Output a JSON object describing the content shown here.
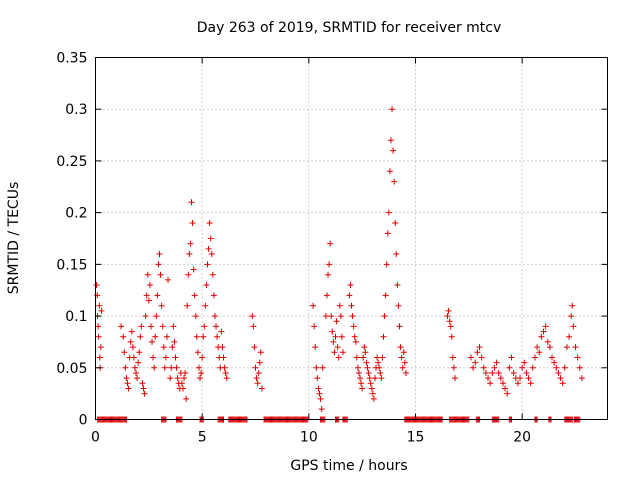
{
  "chart_data": {
    "type": "scatter",
    "title": "Day 263 of 2019, SRMTID for receiver mtcv",
    "xlabel": "GPS time / hours",
    "ylabel": "SRMTID / TECUs",
    "xlim": [
      0,
      24
    ],
    "ylim": [
      0,
      0.35
    ],
    "xticks": [
      0,
      5,
      10,
      15,
      20
    ],
    "yticks": [
      0,
      0.05,
      0.1,
      0.15,
      0.2,
      0.25,
      0.3,
      0.35
    ],
    "xtick_labels": [
      "0",
      "5",
      "10",
      "15",
      "20"
    ],
    "ytick_labels": [
      "0",
      "0.05",
      "0.1",
      "0.15",
      "0.2",
      "0.25",
      "0.3",
      "0.35"
    ],
    "grid": true,
    "marker": "+",
    "color": "#e00000",
    "series": [
      {
        "name": "SRMTID",
        "points": [
          [
            0.05,
            0.13
          ],
          [
            0.08,
            0.12
          ],
          [
            0.1,
            0.1
          ],
          [
            0.12,
            0.09
          ],
          [
            0.15,
            0.08
          ],
          [
            0.18,
            0.11
          ],
          [
            0.2,
            0.06
          ],
          [
            0.22,
            0.05
          ],
          [
            0.25,
            0.07
          ],
          [
            0.28,
            0.105
          ],
          [
            1.2,
            0.09
          ],
          [
            1.3,
            0.08
          ],
          [
            1.35,
            0.065
          ],
          [
            1.4,
            0.05
          ],
          [
            1.45,
            0.04
          ],
          [
            1.5,
            0.035
          ],
          [
            1.55,
            0.03
          ],
          [
            1.6,
            0.06
          ],
          [
            1.65,
            0.075
          ],
          [
            1.7,
            0.085
          ],
          [
            1.75,
            0.07
          ],
          [
            1.8,
            0.06
          ],
          [
            1.85,
            0.05
          ],
          [
            1.9,
            0.045
          ],
          [
            1.95,
            0.04
          ],
          [
            2.0,
            0.055
          ],
          [
            2.05,
            0.065
          ],
          [
            2.1,
            0.08
          ],
          [
            2.15,
            0.09
          ],
          [
            2.2,
            0.035
          ],
          [
            2.25,
            0.03
          ],
          [
            2.3,
            0.025
          ],
          [
            2.35,
            0.1
          ],
          [
            2.4,
            0.12
          ],
          [
            2.45,
            0.14
          ],
          [
            2.5,
            0.115
          ],
          [
            2.55,
            0.13
          ],
          [
            2.6,
            0.09
          ],
          [
            2.65,
            0.075
          ],
          [
            2.7,
            0.06
          ],
          [
            2.75,
            0.05
          ],
          [
            2.8,
            0.08
          ],
          [
            2.85,
            0.1
          ],
          [
            2.9,
            0.12
          ],
          [
            2.95,
            0.15
          ],
          [
            3.0,
            0.16
          ],
          [
            3.05,
            0.14
          ],
          [
            3.1,
            0.11
          ],
          [
            3.15,
            0.09
          ],
          [
            3.2,
            0.07
          ],
          [
            3.25,
            0.05
          ],
          [
            3.3,
            0.06
          ],
          [
            3.35,
            0.08
          ],
          [
            3.4,
            0.135
          ],
          [
            3.5,
            0.04
          ],
          [
            3.55,
            0.05
          ],
          [
            3.6,
            0.07
          ],
          [
            3.65,
            0.09
          ],
          [
            3.7,
            0.075
          ],
          [
            3.75,
            0.06
          ],
          [
            3.8,
            0.05
          ],
          [
            3.85,
            0.04
          ],
          [
            3.9,
            0.035
          ],
          [
            3.95,
            0.03
          ],
          [
            4.0,
            0.045
          ],
          [
            4.05,
            0.035
          ],
          [
            4.1,
            0.03
          ],
          [
            4.15,
            0.04
          ],
          [
            4.2,
            0.045
          ],
          [
            4.25,
            0.02
          ],
          [
            4.3,
            0.11
          ],
          [
            4.35,
            0.14
          ],
          [
            4.4,
            0.16
          ],
          [
            4.45,
            0.17
          ],
          [
            4.5,
            0.21
          ],
          [
            4.55,
            0.19
          ],
          [
            4.6,
            0.145
          ],
          [
            4.65,
            0.12
          ],
          [
            4.7,
            0.1
          ],
          [
            4.75,
            0.08
          ],
          [
            4.8,
            0.065
          ],
          [
            4.85,
            0.05
          ],
          [
            4.9,
            0.04
          ],
          [
            4.95,
            0.045
          ],
          [
            5.0,
            0.06
          ],
          [
            5.05,
            0.08
          ],
          [
            5.1,
            0.09
          ],
          [
            5.15,
            0.11
          ],
          [
            5.2,
            0.13
          ],
          [
            5.25,
            0.15
          ],
          [
            5.3,
            0.165
          ],
          [
            5.35,
            0.19
          ],
          [
            5.4,
            0.175
          ],
          [
            5.45,
            0.16
          ],
          [
            5.5,
            0.14
          ],
          [
            5.55,
            0.12
          ],
          [
            5.6,
            0.1
          ],
          [
            5.65,
            0.09
          ],
          [
            5.7,
            0.08
          ],
          [
            5.75,
            0.07
          ],
          [
            5.8,
            0.06
          ],
          [
            5.85,
            0.05
          ],
          [
            5.9,
            0.085
          ],
          [
            5.95,
            0.07
          ],
          [
            6.0,
            0.06
          ],
          [
            6.05,
            0.05
          ],
          [
            6.1,
            0.045
          ],
          [
            6.15,
            0.04
          ],
          [
            7.35,
            0.1
          ],
          [
            7.4,
            0.09
          ],
          [
            7.45,
            0.07
          ],
          [
            7.5,
            0.05
          ],
          [
            7.55,
            0.04
          ],
          [
            7.6,
            0.035
          ],
          [
            7.65,
            0.045
          ],
          [
            7.7,
            0.055
          ],
          [
            7.75,
            0.065
          ],
          [
            7.8,
            0.03
          ],
          [
            10.2,
            0.11
          ],
          [
            10.25,
            0.09
          ],
          [
            10.3,
            0.07
          ],
          [
            10.35,
            0.05
          ],
          [
            10.4,
            0.04
          ],
          [
            10.45,
            0.03
          ],
          [
            10.5,
            0.025
          ],
          [
            10.55,
            0.02
          ],
          [
            10.6,
            0.01
          ],
          [
            10.65,
            0.05
          ],
          [
            10.8,
            0.1
          ],
          [
            10.85,
            0.12
          ],
          [
            10.9,
            0.14
          ],
          [
            10.95,
            0.15
          ],
          [
            11.0,
            0.17
          ],
          [
            11.05,
            0.1
          ],
          [
            11.1,
            0.085
          ],
          [
            11.15,
            0.075
          ],
          [
            11.2,
            0.065
          ],
          [
            11.25,
            0.08
          ],
          [
            11.3,
            0.095
          ],
          [
            11.35,
            0.07
          ],
          [
            11.4,
            0.06
          ],
          [
            11.45,
            0.11
          ],
          [
            11.5,
            0.1
          ],
          [
            11.55,
            0.08
          ],
          [
            11.6,
            0.065
          ],
          [
            11.9,
            0.12
          ],
          [
            11.95,
            0.13
          ],
          [
            12.0,
            0.11
          ],
          [
            12.05,
            0.1
          ],
          [
            12.1,
            0.09
          ],
          [
            12.15,
            0.08
          ],
          [
            12.2,
            0.075
          ],
          [
            12.25,
            0.06
          ],
          [
            12.3,
            0.05
          ],
          [
            12.35,
            0.045
          ],
          [
            12.4,
            0.04
          ],
          [
            12.45,
            0.035
          ],
          [
            12.5,
            0.03
          ],
          [
            12.55,
            0.06
          ],
          [
            12.6,
            0.07
          ],
          [
            12.65,
            0.065
          ],
          [
            12.7,
            0.055
          ],
          [
            12.75,
            0.05
          ],
          [
            12.8,
            0.045
          ],
          [
            12.85,
            0.04
          ],
          [
            12.9,
            0.035
          ],
          [
            12.95,
            0.03
          ],
          [
            13.0,
            0.025
          ],
          [
            13.05,
            0.02
          ],
          [
            13.1,
            0.04
          ],
          [
            13.15,
            0.05
          ],
          [
            13.2,
            0.06
          ],
          [
            13.25,
            0.055
          ],
          [
            13.3,
            0.05
          ],
          [
            13.35,
            0.045
          ],
          [
            13.4,
            0.04
          ],
          [
            13.45,
            0.06
          ],
          [
            13.5,
            0.08
          ],
          [
            13.55,
            0.1
          ],
          [
            13.6,
            0.12
          ],
          [
            13.65,
            0.15
          ],
          [
            13.7,
            0.18
          ],
          [
            13.75,
            0.2
          ],
          [
            13.8,
            0.24
          ],
          [
            13.85,
            0.27
          ],
          [
            13.9,
            0.3
          ],
          [
            13.95,
            0.26
          ],
          [
            14.0,
            0.23
          ],
          [
            14.05,
            0.19
          ],
          [
            14.1,
            0.16
          ],
          [
            14.15,
            0.13
          ],
          [
            14.2,
            0.11
          ],
          [
            14.25,
            0.09
          ],
          [
            14.3,
            0.07
          ],
          [
            14.35,
            0.06
          ],
          [
            14.4,
            0.05
          ],
          [
            14.45,
            0.065
          ],
          [
            14.5,
            0.055
          ],
          [
            14.55,
            0.045
          ],
          [
            16.5,
            0.1
          ],
          [
            16.55,
            0.105
          ],
          [
            16.6,
            0.095
          ],
          [
            16.65,
            0.09
          ],
          [
            16.7,
            0.08
          ],
          [
            16.75,
            0.06
          ],
          [
            16.8,
            0.05
          ],
          [
            16.85,
            0.04
          ],
          [
            17.6,
            0.06
          ],
          [
            17.7,
            0.05
          ],
          [
            17.8,
            0.055
          ],
          [
            17.9,
            0.065
          ],
          [
            18.0,
            0.07
          ],
          [
            18.1,
            0.06
          ],
          [
            18.2,
            0.05
          ],
          [
            18.3,
            0.045
          ],
          [
            18.4,
            0.04
          ],
          [
            18.5,
            0.035
          ],
          [
            18.6,
            0.045
          ],
          [
            18.7,
            0.05
          ],
          [
            18.8,
            0.055
          ],
          [
            18.9,
            0.045
          ],
          [
            19.0,
            0.04
          ],
          [
            19.1,
            0.035
          ],
          [
            19.2,
            0.03
          ],
          [
            19.3,
            0.025
          ],
          [
            19.4,
            0.05
          ],
          [
            19.5,
            0.06
          ],
          [
            19.6,
            0.045
          ],
          [
            19.7,
            0.04
          ],
          [
            19.8,
            0.035
          ],
          [
            19.9,
            0.04
          ],
          [
            20.0,
            0.05
          ],
          [
            20.1,
            0.055
          ],
          [
            20.2,
            0.045
          ],
          [
            20.3,
            0.04
          ],
          [
            20.4,
            0.035
          ],
          [
            20.5,
            0.05
          ],
          [
            20.6,
            0.06
          ],
          [
            20.7,
            0.07
          ],
          [
            20.8,
            0.065
          ],
          [
            20.9,
            0.08
          ],
          [
            21.0,
            0.085
          ],
          [
            21.1,
            0.09
          ],
          [
            21.2,
            0.075
          ],
          [
            21.3,
            0.07
          ],
          [
            21.4,
            0.06
          ],
          [
            21.5,
            0.055
          ],
          [
            21.6,
            0.05
          ],
          [
            21.7,
            0.045
          ],
          [
            21.8,
            0.04
          ],
          [
            21.9,
            0.035
          ],
          [
            22.0,
            0.05
          ],
          [
            22.1,
            0.07
          ],
          [
            22.2,
            0.08
          ],
          [
            22.3,
            0.1
          ],
          [
            22.35,
            0.11
          ],
          [
            22.4,
            0.09
          ],
          [
            22.5,
            0.07
          ],
          [
            22.6,
            0.06
          ],
          [
            22.7,
            0.05
          ],
          [
            22.8,
            0.04
          ]
        ],
        "zero_runs": [
          [
            0.1,
            1.45
          ],
          [
            3.1,
            3.3
          ],
          [
            3.8,
            4.05
          ],
          [
            4.9,
            5.05
          ],
          [
            5.75,
            6.0
          ],
          [
            6.25,
            7.1
          ],
          [
            7.9,
            9.95
          ],
          [
            10.55,
            10.75
          ],
          [
            11.25,
            11.4
          ],
          [
            11.6,
            11.8
          ],
          [
            14.5,
            16.25
          ],
          [
            16.6,
            17.5
          ],
          [
            17.85,
            18.0
          ],
          [
            18.6,
            18.9
          ],
          [
            19.4,
            19.5
          ],
          [
            20.6,
            20.7
          ],
          [
            21.25,
            21.35
          ],
          [
            22.0,
            22.35
          ],
          [
            22.45,
            22.7
          ]
        ]
      }
    ]
  }
}
